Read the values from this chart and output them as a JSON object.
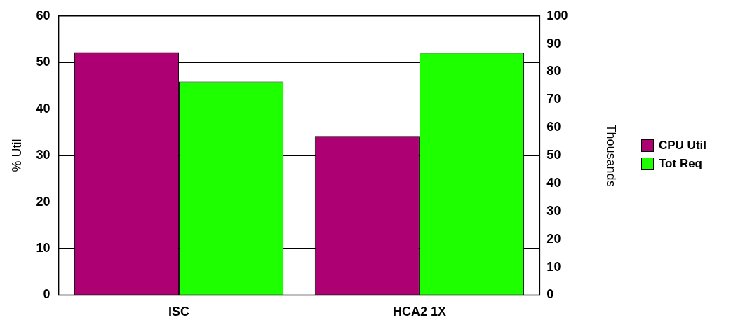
{
  "chart_data": {
    "type": "bar",
    "categories": [
      "ISC",
      "HCA2 1X"
    ],
    "ylabel": "% Util",
    "y2label": "Thousands",
    "series": [
      {
        "name": "CPU Util",
        "color": "#ad0073",
        "values": [
          52.2,
          34.2
        ]
      },
      {
        "name": "Tot Req",
        "color": "#1eff00",
        "values": [
          76.5,
          86.8
        ],
        "axis": "y2"
      }
    ],
    "ylim": [
      0,
      60
    ],
    "yticks": [
      0,
      10,
      20,
      30,
      40,
      50,
      60
    ],
    "y2lim": [
      0,
      100
    ],
    "y2ticks": [
      0,
      10,
      20,
      30,
      40,
      50,
      60,
      70,
      80,
      90,
      100
    ],
    "grid": "y",
    "legend": "right"
  }
}
